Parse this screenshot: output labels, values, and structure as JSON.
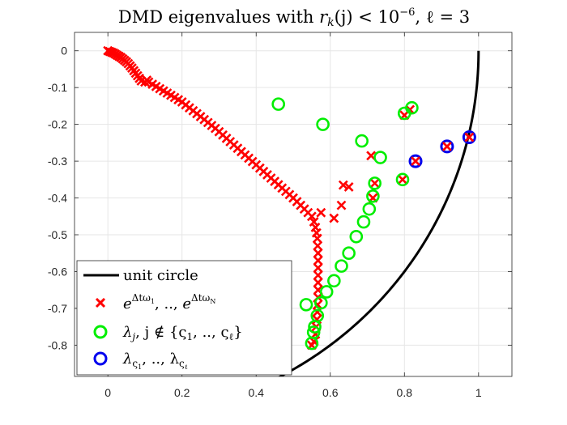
{
  "chart_data": {
    "type": "scatter",
    "title": "DMD eigenvalues with r_k(j) < 10^{-6}, ℓ = 3",
    "title_parts": {
      "prefix": "DMD eigenvalues with ",
      "r": "r",
      "k": "k",
      "j_paren": "(j) < 10",
      "exp": "−6",
      "ell_part": ", ℓ = 3"
    },
    "xlabel": "",
    "ylabel": "",
    "xlim": [
      -0.09,
      1.09
    ],
    "ylim": [
      -0.885,
      0.05
    ],
    "xticks": [
      0,
      0.2,
      0.4,
      0.6,
      0.8,
      1
    ],
    "xtick_labels": [
      "0",
      "0.2",
      "0.4",
      "0.6",
      "0.8",
      "1"
    ],
    "yticks": [
      0,
      -0.1,
      -0.2,
      -0.3,
      -0.4,
      -0.5,
      -0.6,
      -0.7,
      -0.8
    ],
    "ytick_labels": [
      "0",
      "-0.1",
      "-0.2",
      "-0.3",
      "-0.4",
      "-0.5",
      "-0.6",
      "-0.7",
      "-0.8"
    ],
    "grid": true,
    "legend_position": "bottom-left",
    "colors": {
      "circle": "#000000",
      "red": "#ff0000",
      "green": "#00ee00",
      "blue": "#0000ee",
      "grid": "#e6e6e6",
      "axes": "#262626"
    },
    "series": [
      {
        "name": "unit circle",
        "kind": "line",
        "theta_range_deg": [
          -90,
          0
        ]
      },
      {
        "name": "e^{Δtω_1}, .., e^{Δtω_N}",
        "kind": "cross",
        "points": [
          [
            0.0,
            0.0
          ],
          [
            0.005,
            -0.002
          ],
          [
            0.01,
            -0.004
          ],
          [
            0.015,
            -0.006
          ],
          [
            0.02,
            -0.009
          ],
          [
            0.025,
            -0.012
          ],
          [
            0.03,
            -0.015
          ],
          [
            0.035,
            -0.018
          ],
          [
            0.04,
            -0.022
          ],
          [
            0.045,
            -0.026
          ],
          [
            0.05,
            -0.03
          ],
          [
            0.055,
            -0.035
          ],
          [
            0.06,
            -0.041
          ],
          [
            0.065,
            -0.047
          ],
          [
            0.07,
            -0.054
          ],
          [
            0.075,
            -0.061
          ],
          [
            0.08,
            -0.068
          ],
          [
            0.085,
            -0.075
          ],
          [
            0.09,
            -0.082
          ],
          [
            0.1,
            -0.085
          ],
          [
            0.105,
            -0.08
          ],
          [
            0.11,
            -0.085
          ],
          [
            0.12,
            -0.091
          ],
          [
            0.13,
            -0.097
          ],
          [
            0.14,
            -0.103
          ],
          [
            0.15,
            -0.109
          ],
          [
            0.16,
            -0.115
          ],
          [
            0.17,
            -0.121
          ],
          [
            0.18,
            -0.127
          ],
          [
            0.19,
            -0.133
          ],
          [
            0.2,
            -0.139
          ],
          [
            0.21,
            -0.147
          ],
          [
            0.22,
            -0.155
          ],
          [
            0.23,
            -0.163
          ],
          [
            0.24,
            -0.171
          ],
          [
            0.25,
            -0.179
          ],
          [
            0.26,
            -0.187
          ],
          [
            0.27,
            -0.195
          ],
          [
            0.28,
            -0.203
          ],
          [
            0.29,
            -0.211
          ],
          [
            0.3,
            -0.22
          ],
          [
            0.31,
            -0.229
          ],
          [
            0.32,
            -0.238
          ],
          [
            0.33,
            -0.247
          ],
          [
            0.34,
            -0.256
          ],
          [
            0.35,
            -0.265
          ],
          [
            0.36,
            -0.274
          ],
          [
            0.37,
            -0.283
          ],
          [
            0.38,
            -0.292
          ],
          [
            0.39,
            -0.301
          ],
          [
            0.4,
            -0.31
          ],
          [
            0.41,
            -0.319
          ],
          [
            0.42,
            -0.328
          ],
          [
            0.43,
            -0.337
          ],
          [
            0.44,
            -0.346
          ],
          [
            0.45,
            -0.355
          ],
          [
            0.46,
            -0.364
          ],
          [
            0.47,
            -0.373
          ],
          [
            0.48,
            -0.382
          ],
          [
            0.49,
            -0.391
          ],
          [
            0.5,
            -0.4
          ],
          [
            0.51,
            -0.41
          ],
          [
            0.52,
            -0.42
          ],
          [
            0.53,
            -0.43
          ],
          [
            0.54,
            -0.44
          ],
          [
            0.55,
            -0.45
          ],
          [
            0.556,
            -0.465
          ],
          [
            0.56,
            -0.48
          ],
          [
            0.563,
            -0.495
          ],
          [
            0.565,
            -0.51
          ],
          [
            0.566,
            -0.53
          ],
          [
            0.567,
            -0.55
          ],
          [
            0.567,
            -0.57
          ],
          [
            0.567,
            -0.59
          ],
          [
            0.567,
            -0.61
          ],
          [
            0.567,
            -0.63
          ],
          [
            0.567,
            -0.65
          ],
          [
            0.567,
            -0.67
          ],
          [
            0.566,
            -0.69
          ],
          [
            0.565,
            -0.71
          ],
          [
            0.564,
            -0.73
          ],
          [
            0.562,
            -0.75
          ],
          [
            0.56,
            -0.77
          ],
          [
            0.556,
            -0.79
          ],
          [
            0.55,
            -0.8
          ],
          [
            0.575,
            -0.44
          ],
          [
            0.61,
            -0.455
          ],
          [
            0.63,
            -0.42
          ],
          [
            0.635,
            -0.365
          ],
          [
            0.65,
            -0.37
          ],
          [
            0.71,
            -0.285
          ],
          [
            0.715,
            -0.4
          ],
          [
            0.72,
            -0.36
          ],
          [
            0.795,
            -0.35
          ],
          [
            0.8,
            -0.175
          ],
          [
            0.815,
            -0.16
          ],
          [
            0.83,
            -0.3
          ],
          [
            0.915,
            -0.26
          ],
          [
            0.975,
            -0.235
          ]
        ]
      },
      {
        "name": "λ_j, j ∉ {ς_1, .., ς_ℓ}",
        "kind": "circle",
        "points": [
          [
            0.46,
            -0.145
          ],
          [
            0.58,
            -0.2
          ],
          [
            0.685,
            -0.245
          ],
          [
            0.735,
            -0.29
          ],
          [
            0.72,
            -0.36
          ],
          [
            0.715,
            -0.395
          ],
          [
            0.705,
            -0.43
          ],
          [
            0.69,
            -0.465
          ],
          [
            0.67,
            -0.505
          ],
          [
            0.65,
            -0.55
          ],
          [
            0.63,
            -0.585
          ],
          [
            0.61,
            -0.625
          ],
          [
            0.59,
            -0.655
          ],
          [
            0.575,
            -0.685
          ],
          [
            0.565,
            -0.72
          ],
          [
            0.558,
            -0.75
          ],
          [
            0.555,
            -0.765
          ],
          [
            0.55,
            -0.795
          ],
          [
            0.535,
            -0.69
          ],
          [
            0.795,
            -0.35
          ],
          [
            0.8,
            -0.17
          ],
          [
            0.82,
            -0.155
          ]
        ]
      },
      {
        "name": "λ_{ς_1}, .., λ_{ς_ℓ}",
        "kind": "circle",
        "points": [
          [
            0.83,
            -0.3
          ],
          [
            0.915,
            -0.26
          ],
          [
            0.975,
            -0.235
          ]
        ]
      }
    ],
    "legend_entries": [
      {
        "text": "unit circle"
      },
      {
        "base": "e",
        "sup1": "Δtω",
        "sub1": "1",
        "mid": ", .., ",
        "base2": "e",
        "sup2": "Δtω",
        "sub2": "N"
      },
      {
        "lambda": "λ",
        "sub_j": "j",
        "rest": ", j ∉ {ς",
        "sub1": "1",
        "dots": ", .., ς",
        "subl": "ℓ",
        "close": "}"
      },
      {
        "lambda": "λ",
        "sub1": "ς",
        "subsub1": "1",
        "dots": ", .., λ",
        "sub2": "ς",
        "subsub2": "ℓ"
      }
    ]
  }
}
